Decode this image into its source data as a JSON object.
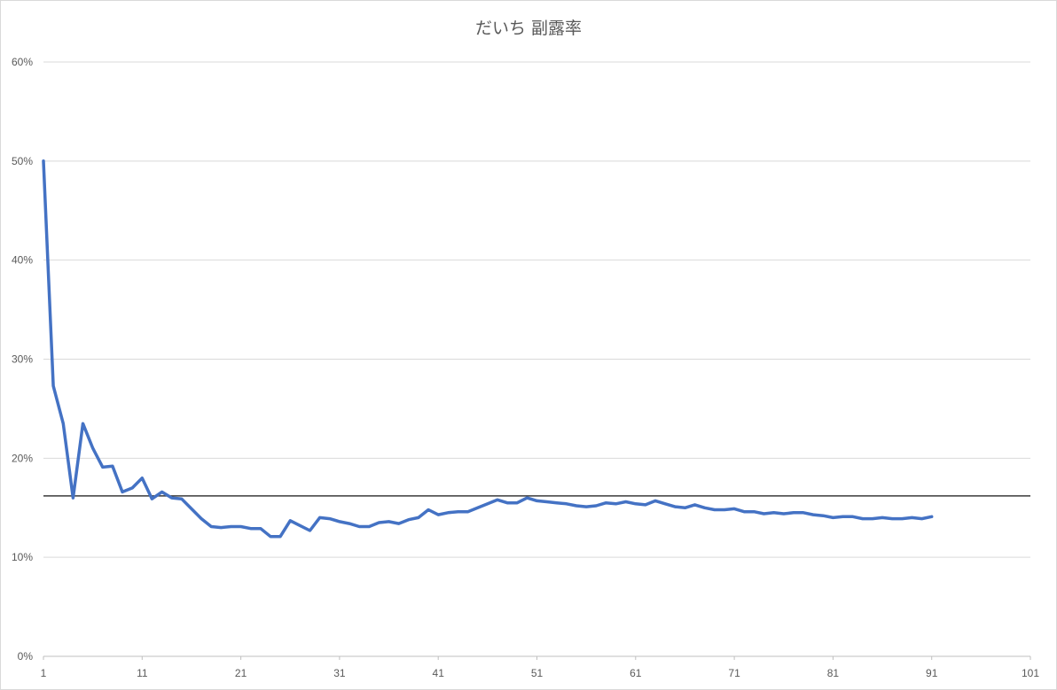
{
  "chart_data": {
    "type": "line",
    "title": "だいち 副露率",
    "xlabel": "",
    "ylabel": "",
    "xlim": [
      1,
      101
    ],
    "ylim": [
      0,
      0.6
    ],
    "x_ticks": [
      "1",
      "11",
      "21",
      "31",
      "41",
      "51",
      "61",
      "71",
      "81",
      "91",
      "101"
    ],
    "y_ticks": [
      "0%",
      "10%",
      "20%",
      "30%",
      "40%",
      "50%",
      "60%"
    ],
    "grid": true,
    "legend": "none",
    "series": [
      {
        "color": "#4472c4",
        "x": [
          1,
          2,
          3,
          4,
          5,
          6,
          7,
          8,
          9,
          10,
          11,
          12,
          13,
          14,
          15,
          16,
          17,
          18,
          19,
          20,
          21,
          22,
          23,
          24,
          25,
          26,
          27,
          28,
          29,
          30,
          31,
          32,
          33,
          34,
          35,
          36,
          37,
          38,
          39,
          40,
          41,
          42,
          43,
          44,
          45,
          46,
          47,
          48,
          49,
          50,
          51,
          52,
          53,
          54,
          55,
          56,
          57,
          58,
          59,
          60,
          61,
          62,
          63,
          64,
          65,
          66,
          67,
          68,
          69,
          70,
          71,
          72,
          73,
          74,
          75,
          76,
          77,
          78,
          79,
          80,
          81,
          82,
          83,
          84,
          85,
          86,
          87,
          88,
          89,
          90,
          91
        ],
        "values": [
          0.5,
          0.273,
          0.235,
          0.16,
          0.235,
          0.21,
          0.191,
          0.192,
          0.166,
          0.17,
          0.18,
          0.159,
          0.166,
          0.16,
          0.159,
          0.149,
          0.139,
          0.131,
          0.13,
          0.131,
          0.131,
          0.129,
          0.129,
          0.121,
          0.121,
          0.137,
          0.132,
          0.127,
          0.14,
          0.139,
          0.136,
          0.134,
          0.131,
          0.131,
          0.135,
          0.136,
          0.134,
          0.138,
          0.14,
          0.148,
          0.143,
          0.145,
          0.146,
          0.146,
          0.15,
          0.154,
          0.158,
          0.155,
          0.155,
          0.16,
          0.157,
          0.156,
          0.155,
          0.154,
          0.152,
          0.151,
          0.152,
          0.155,
          0.154,
          0.156,
          0.154,
          0.153,
          0.157,
          0.154,
          0.151,
          0.15,
          0.153,
          0.15,
          0.148,
          0.148,
          0.149,
          0.146,
          0.146,
          0.144,
          0.145,
          0.144,
          0.145,
          0.145,
          0.143,
          0.142,
          0.14,
          0.141,
          0.141,
          0.139,
          0.139,
          0.14,
          0.139,
          0.139,
          0.14,
          0.139,
          0.141
        ]
      }
    ],
    "reference_line": {
      "value": 0.162,
      "color": "#3a3a3a"
    }
  }
}
